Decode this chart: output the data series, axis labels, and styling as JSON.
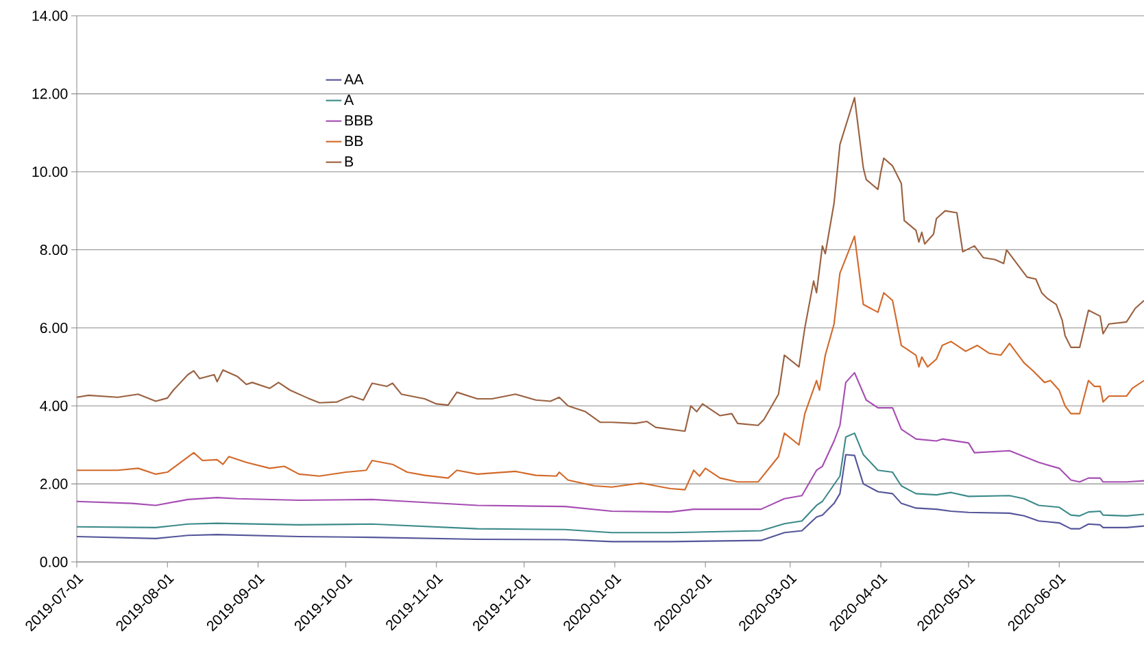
{
  "chart_data": {
    "type": "line",
    "xlim": [
      "2019-07-01",
      "2020-06-30"
    ],
    "xticks": [
      "2019-07-01",
      "2019-08-01",
      "2019-09-01",
      "2019-10-01",
      "2019-11-01",
      "2019-12-01",
      "2020-01-01",
      "2020-02-01",
      "2020-03-01",
      "2020-04-01",
      "2020-05-01",
      "2020-06-01"
    ],
    "ylim": [
      0,
      14
    ],
    "yticks": [
      {
        "value": 0,
        "label": "0.00"
      },
      {
        "value": 2,
        "label": "2.00"
      },
      {
        "value": 4,
        "label": "4.00"
      },
      {
        "value": 6,
        "label": "6.00"
      },
      {
        "value": 8,
        "label": "8.00"
      },
      {
        "value": 10,
        "label": "10.00"
      },
      {
        "value": 12,
        "label": "12.00"
      },
      {
        "value": 14,
        "label": "14.00"
      }
    ],
    "grid": "y",
    "legend": "top left",
    "series": [
      {
        "name": "AA",
        "color": "#55559a",
        "x": [
          "2019-07-01",
          "2019-07-28",
          "2019-08-08",
          "2019-08-18",
          "2019-09-15",
          "2019-10-10",
          "2019-11-15",
          "2019-12-15",
          "2019-12-31",
          "2020-01-20",
          "2020-02-20",
          "2020-02-28",
          "2020-03-05",
          "2020-03-10",
          "2020-03-12",
          "2020-03-16",
          "2020-03-18",
          "2020-03-20",
          "2020-03-23",
          "2020-03-26",
          "2020-03-31",
          "2020-04-05",
          "2020-04-08",
          "2020-04-13",
          "2020-04-20",
          "2020-04-25",
          "2020-05-01",
          "2020-05-15",
          "2020-05-20",
          "2020-05-25",
          "2020-06-01",
          "2020-06-05",
          "2020-06-08",
          "2020-06-11",
          "2020-06-15",
          "2020-06-16",
          "2020-06-24",
          "2020-06-30"
        ],
        "values": [
          0.65,
          0.6,
          0.68,
          0.7,
          0.65,
          0.63,
          0.58,
          0.57,
          0.52,
          0.52,
          0.55,
          0.75,
          0.8,
          1.15,
          1.2,
          1.5,
          1.75,
          2.75,
          2.73,
          2.0,
          1.8,
          1.75,
          1.5,
          1.38,
          1.35,
          1.3,
          1.27,
          1.25,
          1.18,
          1.05,
          1.0,
          0.85,
          0.85,
          0.97,
          0.95,
          0.88,
          0.88,
          0.92
        ]
      },
      {
        "name": "A",
        "color": "#3d8a8a",
        "x": [
          "2019-07-01",
          "2019-07-28",
          "2019-08-08",
          "2019-08-18",
          "2019-09-15",
          "2019-10-10",
          "2019-11-15",
          "2019-12-15",
          "2019-12-31",
          "2020-01-20",
          "2020-02-20",
          "2020-02-28",
          "2020-03-05",
          "2020-03-10",
          "2020-03-12",
          "2020-03-18",
          "2020-03-20",
          "2020-03-23",
          "2020-03-26",
          "2020-03-31",
          "2020-04-05",
          "2020-04-08",
          "2020-04-13",
          "2020-04-20",
          "2020-04-25",
          "2020-05-01",
          "2020-05-15",
          "2020-05-20",
          "2020-05-25",
          "2020-06-01",
          "2020-06-05",
          "2020-06-08",
          "2020-06-11",
          "2020-06-15",
          "2020-06-16",
          "2020-06-24",
          "2020-06-30"
        ],
        "values": [
          0.9,
          0.88,
          0.97,
          0.99,
          0.95,
          0.97,
          0.85,
          0.83,
          0.75,
          0.75,
          0.8,
          0.98,
          1.05,
          1.45,
          1.55,
          2.2,
          3.2,
          3.3,
          2.75,
          2.35,
          2.3,
          1.95,
          1.75,
          1.72,
          1.78,
          1.68,
          1.7,
          1.62,
          1.45,
          1.4,
          1.2,
          1.18,
          1.28,
          1.3,
          1.2,
          1.18,
          1.22
        ]
      },
      {
        "name": "BBB",
        "color": "#a64db3",
        "x": [
          "2019-07-01",
          "2019-07-20",
          "2019-07-28",
          "2019-08-08",
          "2019-08-18",
          "2019-08-25",
          "2019-09-15",
          "2019-10-10",
          "2019-10-22",
          "2019-11-15",
          "2019-12-15",
          "2019-12-31",
          "2020-01-20",
          "2020-01-28",
          "2020-02-20",
          "2020-02-28",
          "2020-03-05",
          "2020-03-10",
          "2020-03-12",
          "2020-03-16",
          "2020-03-18",
          "2020-03-20",
          "2020-03-23",
          "2020-03-27",
          "2020-03-31",
          "2020-04-05",
          "2020-04-08",
          "2020-04-13",
          "2020-04-20",
          "2020-04-22",
          "2020-05-01",
          "2020-05-03",
          "2020-05-15",
          "2020-05-20",
          "2020-05-25",
          "2020-06-01",
          "2020-06-05",
          "2020-06-08",
          "2020-06-11",
          "2020-06-15",
          "2020-06-16",
          "2020-06-24",
          "2020-06-30"
        ],
        "values": [
          1.55,
          1.5,
          1.45,
          1.6,
          1.65,
          1.62,
          1.58,
          1.6,
          1.55,
          1.45,
          1.42,
          1.3,
          1.28,
          1.35,
          1.35,
          1.62,
          1.7,
          2.35,
          2.45,
          3.1,
          3.5,
          4.6,
          4.85,
          4.15,
          3.95,
          3.95,
          3.4,
          3.15,
          3.1,
          3.15,
          3.05,
          2.8,
          2.85,
          2.7,
          2.55,
          2.4,
          2.1,
          2.05,
          2.15,
          2.15,
          2.05,
          2.05,
          2.08
        ]
      },
      {
        "name": "BB",
        "color": "#d2692a",
        "x": [
          "2019-07-01",
          "2019-07-15",
          "2019-07-22",
          "2019-07-28",
          "2019-08-01",
          "2019-08-10",
          "2019-08-13",
          "2019-08-18",
          "2019-08-20",
          "2019-08-22",
          "2019-08-28",
          "2019-09-05",
          "2019-09-10",
          "2019-09-15",
          "2019-09-22",
          "2019-10-01",
          "2019-10-08",
          "2019-10-10",
          "2019-10-17",
          "2019-10-22",
          "2019-10-28",
          "2019-11-05",
          "2019-11-08",
          "2019-11-15",
          "2019-11-28",
          "2019-12-05",
          "2019-12-12",
          "2019-12-13",
          "2019-12-16",
          "2019-12-25",
          "2019-12-31",
          "2020-01-10",
          "2020-01-20",
          "2020-01-25",
          "2020-01-28",
          "2020-01-30",
          "2020-02-01",
          "2020-02-06",
          "2020-02-12",
          "2020-02-19",
          "2020-02-26",
          "2020-02-28",
          "2020-03-04",
          "2020-03-06",
          "2020-03-10",
          "2020-03-11",
          "2020-03-13",
          "2020-03-16",
          "2020-03-18",
          "2020-03-23",
          "2020-03-26",
          "2020-03-31",
          "2020-04-02",
          "2020-04-05",
          "2020-04-08",
          "2020-04-13",
          "2020-04-14",
          "2020-04-15",
          "2020-04-17",
          "2020-04-20",
          "2020-04-22",
          "2020-04-25",
          "2020-04-30",
          "2020-05-04",
          "2020-05-08",
          "2020-05-12",
          "2020-05-15",
          "2020-05-20",
          "2020-05-23",
          "2020-05-27",
          "2020-05-29",
          "2020-06-01",
          "2020-06-03",
          "2020-06-05",
          "2020-06-08",
          "2020-06-11",
          "2020-06-13",
          "2020-06-15",
          "2020-06-16",
          "2020-06-18",
          "2020-06-24",
          "2020-06-26",
          "2020-06-30"
        ],
        "values": [
          2.35,
          2.35,
          2.4,
          2.25,
          2.3,
          2.8,
          2.6,
          2.62,
          2.5,
          2.7,
          2.55,
          2.4,
          2.45,
          2.25,
          2.2,
          2.3,
          2.35,
          2.6,
          2.5,
          2.3,
          2.22,
          2.15,
          2.35,
          2.25,
          2.32,
          2.22,
          2.2,
          2.3,
          2.1,
          1.95,
          1.92,
          2.02,
          1.88,
          1.85,
          2.35,
          2.2,
          2.4,
          2.15,
          2.05,
          2.05,
          2.7,
          3.3,
          3.0,
          3.8,
          4.65,
          4.4,
          5.3,
          6.1,
          7.4,
          8.35,
          6.6,
          6.4,
          6.9,
          6.7,
          5.55,
          5.3,
          5.0,
          5.25,
          5.0,
          5.2,
          5.55,
          5.65,
          5.4,
          5.55,
          5.35,
          5.3,
          5.6,
          5.1,
          4.9,
          4.6,
          4.65,
          4.4,
          4.0,
          3.8,
          3.8,
          4.65,
          4.5,
          4.5,
          4.1,
          4.25,
          4.25,
          4.45,
          4.65
        ]
      },
      {
        "name": "B",
        "color": "#9a6140",
        "x": [
          "2019-07-01",
          "2019-07-05",
          "2019-07-15",
          "2019-07-22",
          "2019-07-28",
          "2019-08-01",
          "2019-08-03",
          "2019-08-08",
          "2019-08-10",
          "2019-08-12",
          "2019-08-17",
          "2019-08-18",
          "2019-08-20",
          "2019-08-25",
          "2019-08-28",
          "2019-08-30",
          "2019-09-05",
          "2019-09-08",
          "2019-09-12",
          "2019-09-18",
          "2019-09-22",
          "2019-09-28",
          "2019-10-01",
          "2019-10-03",
          "2019-10-07",
          "2019-10-10",
          "2019-10-15",
          "2019-10-17",
          "2019-10-20",
          "2019-10-28",
          "2019-11-01",
          "2019-11-05",
          "2019-11-08",
          "2019-11-15",
          "2019-11-20",
          "2019-11-28",
          "2019-12-05",
          "2019-12-10",
          "2019-12-13",
          "2019-12-16",
          "2019-12-22",
          "2019-12-27",
          "2019-12-31",
          "2020-01-08",
          "2020-01-12",
          "2020-01-15",
          "2020-01-25",
          "2020-01-27",
          "2020-01-29",
          "2020-01-31",
          "2020-02-06",
          "2020-02-10",
          "2020-02-12",
          "2020-02-19",
          "2020-02-21",
          "2020-02-26",
          "2020-02-28",
          "2020-03-04",
          "2020-03-06",
          "2020-03-09",
          "2020-03-10",
          "2020-03-12",
          "2020-03-13",
          "2020-03-16",
          "2020-03-18",
          "2020-03-23",
          "2020-03-26",
          "2020-03-27",
          "2020-03-31",
          "2020-04-01",
          "2020-04-02",
          "2020-04-05",
          "2020-04-08",
          "2020-04-09",
          "2020-04-13",
          "2020-04-14",
          "2020-04-15",
          "2020-04-16",
          "2020-04-19",
          "2020-04-20",
          "2020-04-23",
          "2020-04-27",
          "2020-04-29",
          "2020-05-03",
          "2020-05-06",
          "2020-05-10",
          "2020-05-13",
          "2020-05-14",
          "2020-05-18",
          "2020-05-21",
          "2020-05-24",
          "2020-05-26",
          "2020-05-28",
          "2020-05-31",
          "2020-06-02",
          "2020-06-03",
          "2020-06-05",
          "2020-06-08",
          "2020-06-11",
          "2020-06-15",
          "2020-06-16",
          "2020-06-18",
          "2020-06-24",
          "2020-06-27",
          "2020-06-30"
        ],
        "values": [
          4.22,
          4.27,
          4.22,
          4.3,
          4.12,
          4.2,
          4.4,
          4.8,
          4.9,
          4.7,
          4.8,
          4.62,
          4.92,
          4.75,
          4.55,
          4.6,
          4.45,
          4.6,
          4.4,
          4.2,
          4.08,
          4.1,
          4.2,
          4.25,
          4.15,
          4.58,
          4.5,
          4.58,
          4.3,
          4.18,
          4.05,
          4.02,
          4.35,
          4.18,
          4.18,
          4.3,
          4.15,
          4.12,
          4.22,
          4.0,
          3.85,
          3.58,
          3.58,
          3.55,
          3.6,
          3.45,
          3.35,
          4.0,
          3.85,
          4.05,
          3.75,
          3.8,
          3.55,
          3.5,
          3.65,
          4.3,
          5.3,
          5.0,
          6.0,
          7.2,
          6.9,
          8.1,
          7.9,
          9.2,
          10.7,
          11.9,
          10.1,
          9.8,
          9.55,
          10.0,
          10.35,
          10.15,
          9.7,
          8.75,
          8.5,
          8.2,
          8.45,
          8.15,
          8.4,
          8.8,
          9.0,
          8.95,
          7.95,
          8.1,
          7.8,
          7.75,
          7.65,
          8.0,
          7.6,
          7.3,
          7.25,
          6.9,
          6.75,
          6.6,
          6.2,
          5.8,
          5.5,
          5.5,
          6.45,
          6.3,
          5.85,
          6.1,
          6.15,
          6.5,
          6.7
        ]
      }
    ]
  }
}
